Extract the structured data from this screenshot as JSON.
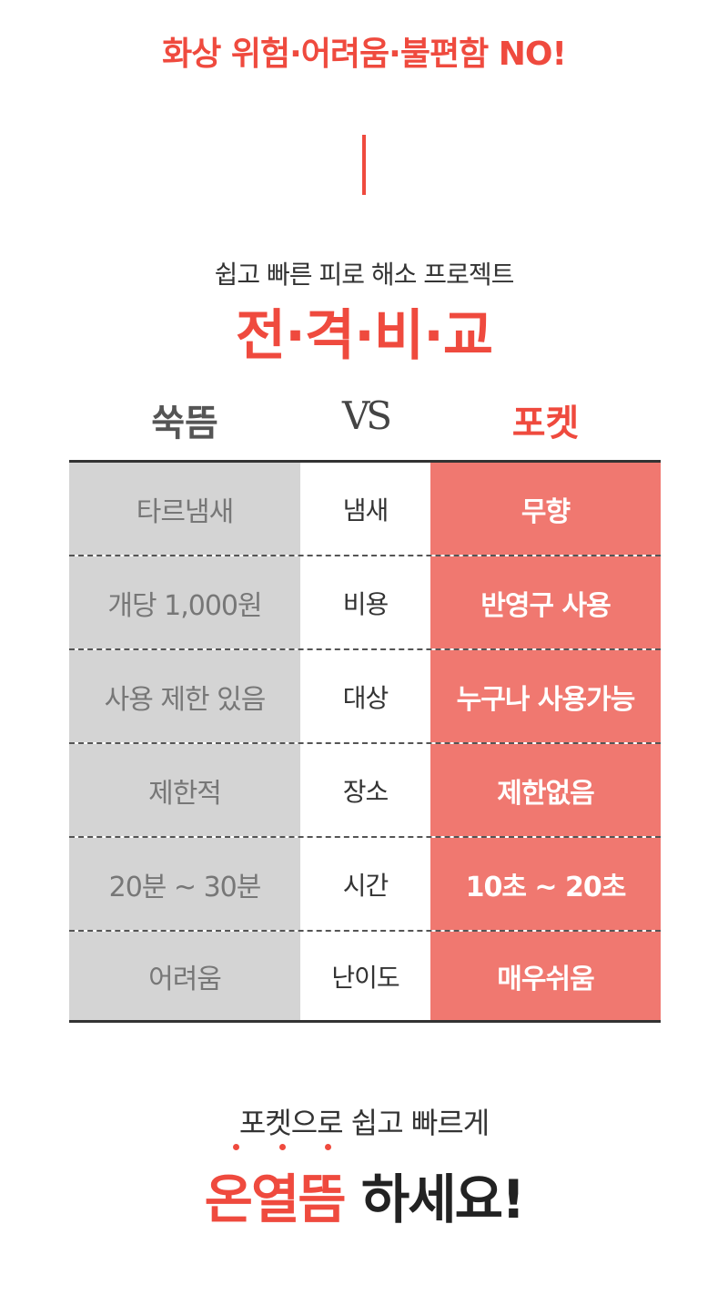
{
  "header": {
    "slogan": "화상 위험·어려움·불편함 NO!"
  },
  "intro": {
    "subtitle": "쉽고 빠른 피로 해소 프로젝트",
    "title": "전·격·비·교"
  },
  "comparison": {
    "left_label": "쑥뜸",
    "vs_label": "VS",
    "right_label": "포켓",
    "rows": [
      {
        "left": "타르냄새",
        "category": "냄새",
        "right": "무향"
      },
      {
        "left": "개당 1,000원",
        "category": "비용",
        "right": "반영구 사용"
      },
      {
        "left": "사용 제한 있음",
        "category": "대상",
        "right": "누구나 사용가능"
      },
      {
        "left": "제한적",
        "category": "장소",
        "right": "제한없음"
      },
      {
        "left": "20분 ~ 30분",
        "category": "시간",
        "right": "10초 ~ 20초"
      },
      {
        "left": "어려움",
        "category": "난이도",
        "right": "매우쉬움"
      }
    ]
  },
  "footer": {
    "subtitle": "포켓으로 쉽고 빠르게",
    "highlight": "온열뜸",
    "suffix": "하세요!"
  },
  "colors": {
    "accent": "#ef4a3e",
    "right_column_bg": "#f07870",
    "left_column_bg": "#d4d4d4"
  }
}
